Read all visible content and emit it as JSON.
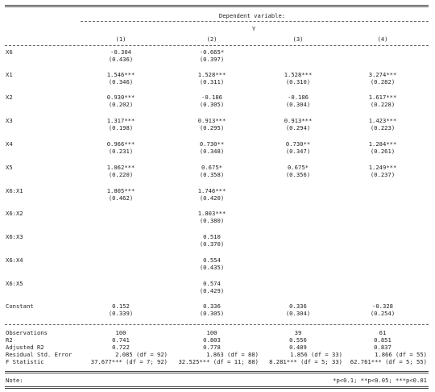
{
  "title": "Dependent variable:",
  "dep_var": "Y",
  "columns": [
    "(1)",
    "(2)",
    "(3)",
    "(4)"
  ],
  "rows": [
    {
      "label": "X6",
      "coef": [
        "-0.304",
        "-0.665*",
        "",
        ""
      ],
      "se": [
        "(0.436)",
        "(0.397)",
        "",
        ""
      ]
    },
    {
      "label": "X1",
      "coef": [
        "1.546***",
        "1.528***",
        "1.528***",
        "3.274***"
      ],
      "se": [
        "(0.346)",
        "(0.311)",
        "(0.310)",
        "(0.282)"
      ]
    },
    {
      "label": "X2",
      "coef": [
        "0.930***",
        "-0.186",
        "-0.186",
        "1.617***"
      ],
      "se": [
        "(0.202)",
        "(0.305)",
        "(0.304)",
        "(0.228)"
      ]
    },
    {
      "label": "X3",
      "coef": [
        "1.317***",
        "0.913***",
        "0.913***",
        "1.423***"
      ],
      "se": [
        "(0.198)",
        "(0.295)",
        "(0.294)",
        "(0.223)"
      ]
    },
    {
      "label": "X4",
      "coef": [
        "0.966***",
        "0.730**",
        "0.730**",
        "1.284***"
      ],
      "se": [
        "(0.231)",
        "(0.348)",
        "(0.347)",
        "(0.261)"
      ]
    },
    {
      "label": "X5",
      "coef": [
        "1.062***",
        "0.675*",
        "0.675*",
        "1.249***"
      ],
      "se": [
        "(0.220)",
        "(0.358)",
        "(0.356)",
        "(0.237)"
      ]
    },
    {
      "label": "X6:X1",
      "coef": [
        "1.805***",
        "1.746***",
        "",
        ""
      ],
      "se": [
        "(0.462)",
        "(0.420)",
        "",
        ""
      ]
    },
    {
      "label": "X6:X2",
      "coef": [
        "",
        "1.803***",
        "",
        ""
      ],
      "se": [
        "",
        "(0.380)",
        "",
        ""
      ]
    },
    {
      "label": "X6:X3",
      "coef": [
        "",
        "0.510",
        "",
        ""
      ],
      "se": [
        "",
        "(0.370)",
        "",
        ""
      ]
    },
    {
      "label": "X6:X4",
      "coef": [
        "",
        "0.554",
        "",
        ""
      ],
      "se": [
        "",
        "(0.435)",
        "",
        ""
      ]
    },
    {
      "label": "X6:X5",
      "coef": [
        "",
        "0.574",
        "",
        ""
      ],
      "se": [
        "",
        "(0.429)",
        "",
        ""
      ]
    },
    {
      "label": "Constant",
      "coef": [
        "0.152",
        "0.336",
        "0.336",
        "-0.328"
      ],
      "se": [
        "(0.339)",
        "(0.305)",
        "(0.304)",
        "(0.254)"
      ]
    }
  ],
  "stats": [
    {
      "label": "Observations",
      "values": [
        "100",
        "100",
        "39",
        "61"
      ]
    },
    {
      "label": "R2",
      "values": [
        "0.741",
        "0.803",
        "0.556",
        "0.851"
      ]
    },
    {
      "label": "Adjusted R2",
      "values": [
        "0.722",
        "0.778",
        "0.489",
        "0.837"
      ]
    },
    {
      "label": "Residual Std. Error",
      "values": [
        "2.085 (df = 92)",
        "1.863 (df = 88)",
        "1.856 (df = 33)",
        "1.866 (df = 55)"
      ]
    },
    {
      "label": "F Statistic",
      "values": [
        "37.677*** (df = 7; 92)",
        "32.525*** (df = 11; 88)",
        "8.281*** (df = 5; 33)",
        "62.761*** (df = 5; 55)"
      ]
    }
  ],
  "note_label": "Note:",
  "note_text": "*p<0.1; **p<0.05; ***p<0.01"
}
